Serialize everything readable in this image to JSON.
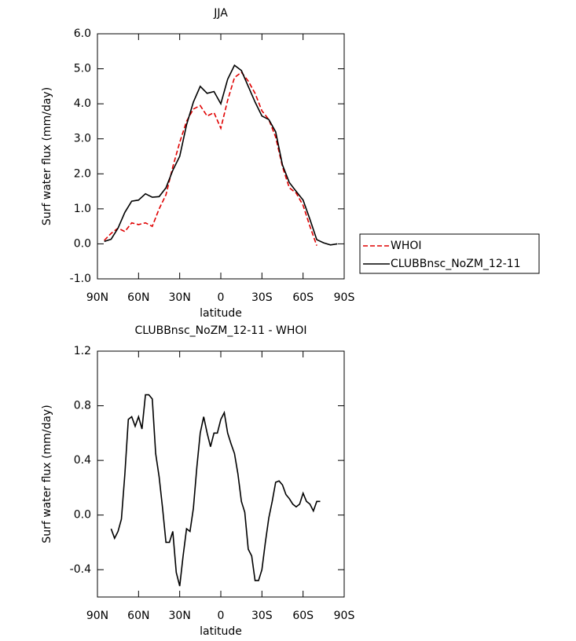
{
  "chart_data": [
    {
      "type": "line",
      "title": "JJA",
      "x_label": "latitude",
      "y_label": "Surf water flux (mm/day)",
      "x": [
        85,
        80,
        75,
        70,
        65,
        60,
        55,
        50,
        45,
        40,
        35,
        30,
        25,
        20,
        15,
        10,
        5,
        0,
        -5,
        -10,
        -15,
        -20,
        -25,
        -30,
        -35,
        -40,
        -45,
        -50,
        -55,
        -60,
        -65,
        -70,
        -75,
        -80,
        -85
      ],
      "series": [
        {
          "name": "WHOI",
          "color": "#e00000",
          "linestyle": "dashed",
          "values": [
            0.1,
            0.3,
            0.45,
            0.35,
            0.6,
            0.55,
            0.6,
            0.5,
            1.0,
            1.4,
            2.2,
            2.9,
            3.5,
            3.85,
            3.95,
            3.65,
            3.75,
            3.3,
            4.1,
            4.75,
            4.9,
            4.65,
            4.3,
            3.8,
            3.55,
            3.05,
            2.2,
            1.6,
            1.45,
            1.1,
            0.5,
            -0.05,
            null,
            null,
            null
          ]
        },
        {
          "name": "CLUBBnsc_NoZM_12-11",
          "color": "#000000",
          "linestyle": "solid",
          "values": [
            0.07,
            0.13,
            0.45,
            0.9,
            1.22,
            1.25,
            1.43,
            1.33,
            1.35,
            1.6,
            2.1,
            2.5,
            3.4,
            4.05,
            4.5,
            4.3,
            4.35,
            4.0,
            4.7,
            5.1,
            4.95,
            4.5,
            4.05,
            3.65,
            3.55,
            3.2,
            2.25,
            1.75,
            1.5,
            1.25,
            0.7,
            0.12,
            0.03,
            -0.03,
            0.0
          ]
        }
      ],
      "xlim": [
        90,
        -90
      ],
      "xticks": [
        {
          "value": 90,
          "label": "90N"
        },
        {
          "value": 60,
          "label": "60N"
        },
        {
          "value": 30,
          "label": "30N"
        },
        0,
        {
          "value": -30,
          "label": "30S"
        },
        {
          "value": -60,
          "label": "60S"
        },
        {
          "value": -90,
          "label": "90S"
        }
      ],
      "ylim": [
        -1,
        6
      ],
      "yticks": [
        {
          "value": -1,
          "label": "-1.0"
        },
        {
          "value": 0,
          "label": "0.0"
        },
        {
          "value": 1,
          "label": "1.0"
        },
        {
          "value": 2,
          "label": "2.0"
        },
        {
          "value": 3,
          "label": "3.0"
        },
        {
          "value": 4,
          "label": "4.0"
        },
        {
          "value": 5,
          "label": "5.0"
        },
        {
          "value": 6,
          "label": "6.0"
        }
      ],
      "legend": "right"
    },
    {
      "type": "line",
      "title": "CLUBBnsc_NoZM_12-11 - WHOI",
      "x_label": "latitude",
      "y_label": "Surf water flux (mm/day)",
      "x": [
        80,
        77.5,
        75,
        72.5,
        70,
        67.5,
        65,
        62.5,
        60,
        57.5,
        55,
        52.5,
        50,
        47.5,
        45,
        42.5,
        40,
        37.5,
        35,
        32.5,
        30,
        27.5,
        25,
        22.5,
        20,
        17.5,
        15,
        12.5,
        10,
        7.5,
        5,
        2.5,
        0,
        -2.5,
        -5,
        -7.5,
        -10,
        -12.5,
        -15,
        -17.5,
        -20,
        -22.5,
        -25,
        -27.5,
        -30,
        -32.5,
        -35,
        -37.5,
        -40,
        -42.5,
        -45,
        -47.5,
        -50,
        -52.5,
        -55,
        -57.5,
        -60,
        -62.5,
        -65,
        -67.5,
        -70,
        -72.5
      ],
      "values": [
        -0.1,
        -0.17,
        -0.12,
        -0.03,
        0.3,
        0.7,
        0.72,
        0.65,
        0.72,
        0.63,
        0.88,
        0.88,
        0.85,
        0.45,
        0.28,
        0.05,
        -0.2,
        -0.2,
        -0.12,
        -0.42,
        -0.52,
        -0.3,
        -0.1,
        -0.12,
        0.05,
        0.35,
        0.6,
        0.72,
        0.6,
        0.5,
        0.6,
        0.6,
        0.7,
        0.75,
        0.6,
        0.52,
        0.45,
        0.3,
        0.1,
        0.02,
        -0.25,
        -0.3,
        -0.48,
        -0.48,
        -0.4,
        -0.2,
        -0.02,
        0.1,
        0.24,
        0.25,
        0.22,
        0.15,
        0.12,
        0.08,
        0.06,
        0.08,
        0.16,
        0.1,
        0.08,
        0.03,
        0.1,
        0.1
      ],
      "color": "#000000",
      "xlim": [
        90,
        -90
      ],
      "xticks": [
        {
          "value": 90,
          "label": "90N"
        },
        {
          "value": 60,
          "label": "60N"
        },
        {
          "value": 30,
          "label": "30N"
        },
        0,
        {
          "value": -30,
          "label": "30S"
        },
        {
          "value": -60,
          "label": "60S"
        },
        {
          "value": -90,
          "label": "90S"
        }
      ],
      "ylim": [
        -0.6,
        1.2
      ],
      "yticks": [
        -0.4,
        {
          "value": 0,
          "label": "0.0"
        },
        0.4,
        0.8,
        1.2
      ]
    }
  ]
}
